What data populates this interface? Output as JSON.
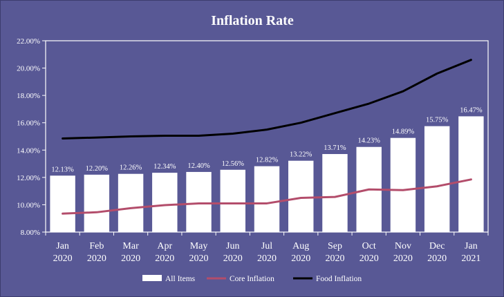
{
  "chart_data": {
    "type": "bar",
    "title": "Inflation Rate",
    "xlabel": "",
    "ylabel": "",
    "ylim": [
      8,
      22
    ],
    "y_ticks": [
      "8.00%",
      "10.00%",
      "12.00%",
      "14.00%",
      "16.00%",
      "18.00%",
      "20.00%",
      "22.00%"
    ],
    "categories": [
      [
        "Jan",
        "2020"
      ],
      [
        "Feb",
        "2020"
      ],
      [
        "Mar",
        "2020"
      ],
      [
        "Apr",
        "2020"
      ],
      [
        "May",
        "2020"
      ],
      [
        "Jun",
        "2020"
      ],
      [
        "Jul",
        "2020"
      ],
      [
        "Aug",
        "2020"
      ],
      [
        "Sep",
        "2020"
      ],
      [
        "Oct",
        "2020"
      ],
      [
        "Nov",
        "2020"
      ],
      [
        "Dec",
        "2020"
      ],
      [
        "Jan",
        "2021"
      ]
    ],
    "series": [
      {
        "name": "All Items",
        "kind": "bar",
        "color": "#ffffff",
        "values": [
          12.13,
          12.2,
          12.26,
          12.34,
          12.4,
          12.56,
          12.82,
          13.22,
          13.71,
          14.23,
          14.89,
          15.75,
          16.47
        ],
        "labels": [
          "12.13%",
          "12.20%",
          "12.26%",
          "12.34%",
          "12.40%",
          "12.56%",
          "12.82%",
          "13.22%",
          "13.71%",
          "14.23%",
          "14.89%",
          "15.75%",
          "16.47%"
        ]
      },
      {
        "name": "Core Inflation",
        "kind": "line",
        "color": "#b34d6b",
        "values": [
          9.35,
          9.45,
          9.75,
          9.97,
          10.1,
          10.1,
          10.1,
          10.5,
          10.57,
          11.12,
          11.07,
          11.35,
          11.85
        ]
      },
      {
        "name": "Food Inflation",
        "kind": "line",
        "color": "#000000",
        "values": [
          14.85,
          14.92,
          15.0,
          15.05,
          15.05,
          15.2,
          15.5,
          16.0,
          16.7,
          17.4,
          18.3,
          19.6,
          20.6
        ]
      }
    ],
    "legend_position": "bottom",
    "grid": false,
    "colors": {
      "background": "#585895",
      "plot_area": "#585895",
      "text": "#ffffff"
    }
  }
}
